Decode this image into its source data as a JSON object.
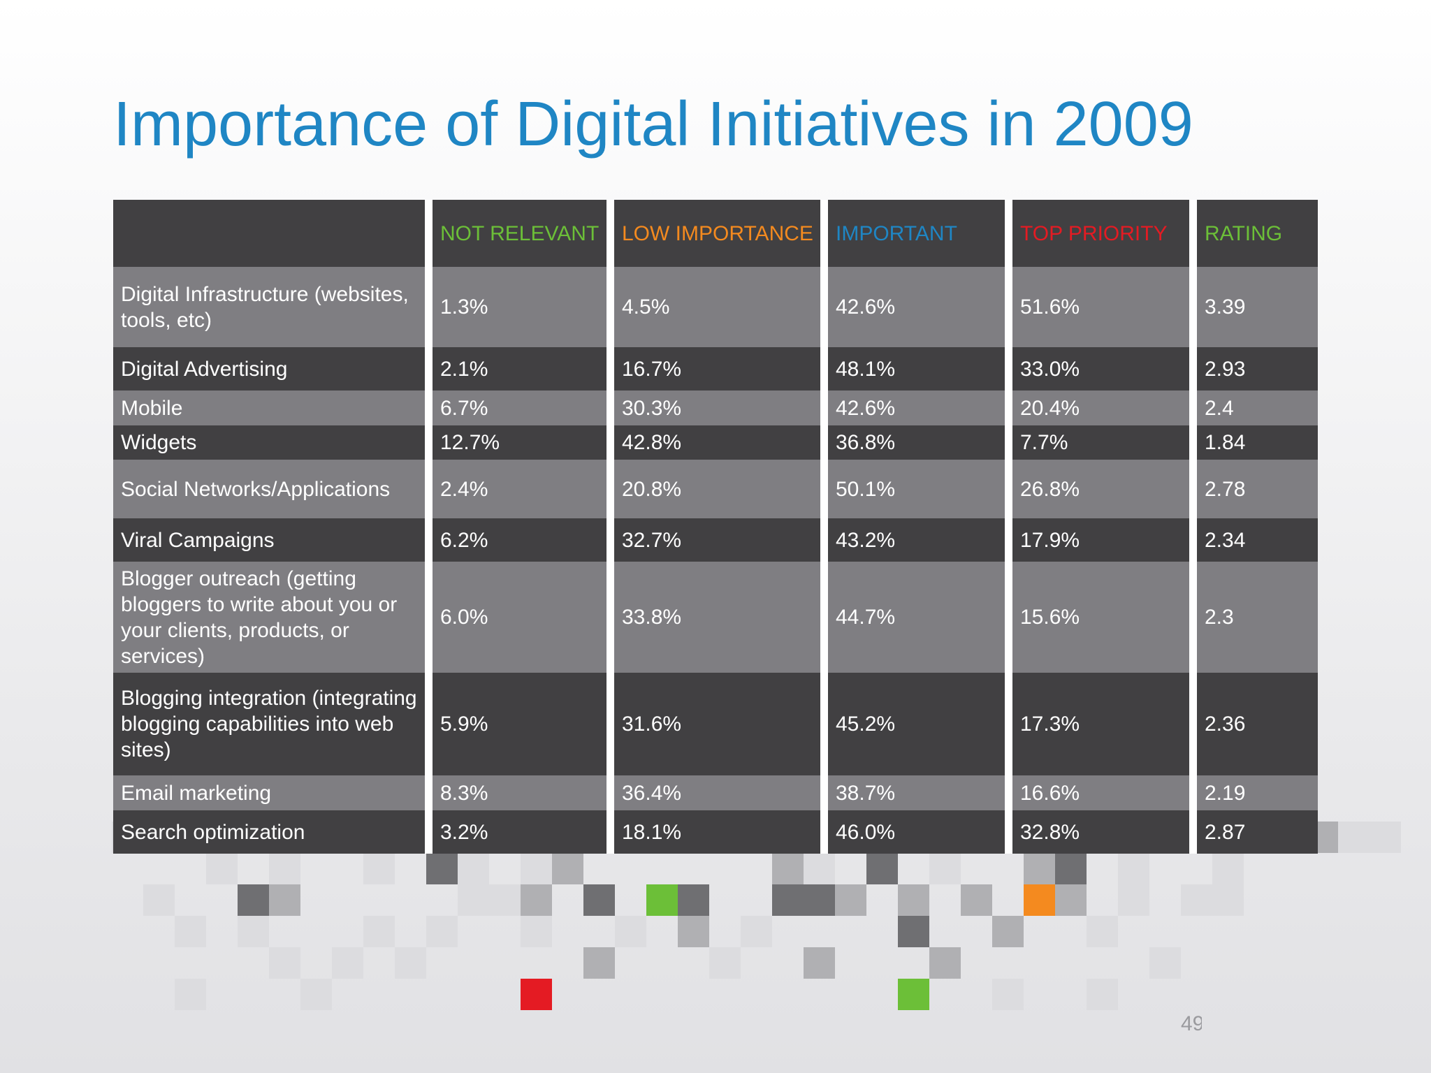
{
  "slide": {
    "title": "Importance of Digital Initiatives in 2009",
    "page_number": "49"
  },
  "table": {
    "headers": [
      "",
      "NOT RELEVANT",
      "LOW IMPORTANCE",
      "IMPORTANT",
      "TOP PRIORITY",
      "RATING"
    ],
    "rows": [
      {
        "label": "Digital Infrastructure (websites, tools, etc)",
        "not_relevant": "1.3%",
        "low_importance": "4.5%",
        "important": "42.6%",
        "top_priority": "51.6%",
        "rating": "3.39"
      },
      {
        "label": "Digital Advertising",
        "not_relevant": "2.1%",
        "low_importance": "16.7%",
        "important": "48.1%",
        "top_priority": "33.0%",
        "rating": "2.93"
      },
      {
        "label": "Mobile",
        "not_relevant": "6.7%",
        "low_importance": "30.3%",
        "important": "42.6%",
        "top_priority": "20.4%",
        "rating": "2.4"
      },
      {
        "label": "Widgets",
        "not_relevant": "12.7%",
        "low_importance": "42.8%",
        "important": "36.8%",
        "top_priority": "7.7%",
        "rating": "1.84"
      },
      {
        "label": "Social Networks/Applications",
        "not_relevant": "2.4%",
        "low_importance": "20.8%",
        "important": "50.1%",
        "top_priority": "26.8%",
        "rating": "2.78"
      },
      {
        "label": "Viral Campaigns",
        "not_relevant": "6.2%",
        "low_importance": "32.7%",
        "important": "43.2%",
        "top_priority": "17.9%",
        "rating": "2.34"
      },
      {
        "label": "Blogger outreach (getting bloggers to write about you or your clients, products, or services)",
        "not_relevant": "6.0%",
        "low_importance": "33.8%",
        "important": "44.7%",
        "top_priority": "15.6%",
        "rating": "2.3"
      },
      {
        "label": "Blogging integration (integrating blogging capabilities into web sites)",
        "not_relevant": "5.9%",
        "low_importance": "31.6%",
        "important": "45.2%",
        "top_priority": "17.3%",
        "rating": "2.36"
      },
      {
        "label": "Email marketing",
        "not_relevant": "8.3%",
        "low_importance": "36.4%",
        "important": "38.7%",
        "top_priority": "16.6%",
        "rating": "2.19"
      },
      {
        "label": "Search optimization",
        "not_relevant": "3.2%",
        "low_importance": "18.1%",
        "important": "46.0%",
        "top_priority": "32.8%",
        "rating": "2.87"
      }
    ]
  },
  "colors": {
    "title": "#1f86c4",
    "not_relevant": "#6cbf38",
    "low_importance": "#f48a1f",
    "important": "#1f86c4",
    "top_priority": "#e41b23",
    "rating": "#6cbf38",
    "row_dark": "#414042",
    "row_light": "#7f7e82"
  }
}
